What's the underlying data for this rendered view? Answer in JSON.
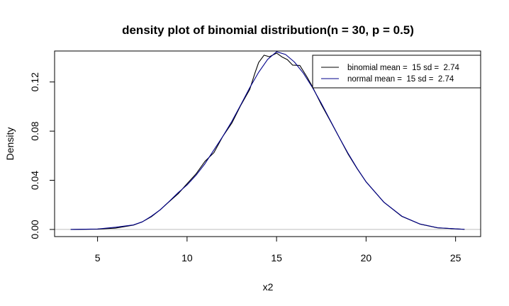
{
  "chart_data": {
    "type": "line",
    "title": "density plot of binomial distribution(n = 30, p = 0.5)",
    "xlabel": "x2",
    "ylabel": "Density",
    "xlim": [
      2.6,
      26.4
    ],
    "ylim": [
      -0.0058,
      0.1452
    ],
    "xticks": [
      5,
      10,
      15,
      20,
      25
    ],
    "yticks": [
      0.0,
      0.04,
      0.08,
      0.12
    ],
    "xtick_labels": [
      "5",
      "10",
      "15",
      "20",
      "25"
    ],
    "ytick_labels": [
      "0.00",
      "0.04",
      "0.08",
      "0.12"
    ],
    "baseline": 0,
    "legend_position": "top-right",
    "series": [
      {
        "name": "binomial mean =  15 sd =  2.74",
        "color": "#000000",
        "x": [
          3.5,
          5,
          6,
          7,
          7.5,
          8,
          8.5,
          9,
          9.5,
          10,
          10.5,
          11,
          11.5,
          12,
          12.5,
          13,
          13.5,
          13.8,
          14,
          14.3,
          14.6,
          15,
          15.3,
          15.6,
          15.9,
          16.3,
          16.7,
          17,
          17.5,
          18,
          18.5,
          19,
          19.5,
          20,
          21,
          22,
          23,
          24,
          25.5
        ],
        "y": [
          0.0,
          0.0003,
          0.0011,
          0.0035,
          0.0062,
          0.0103,
          0.016,
          0.0226,
          0.029,
          0.0372,
          0.0452,
          0.0554,
          0.0625,
          0.0758,
          0.0865,
          0.101,
          0.1139,
          0.1276,
          0.1359,
          0.1418,
          0.1405,
          0.1435,
          0.1404,
          0.1382,
          0.1337,
          0.1334,
          0.1241,
          0.1162,
          0.1016,
          0.0884,
          0.0749,
          0.0612,
          0.0495,
          0.0388,
          0.0221,
          0.0106,
          0.0044,
          0.0013,
          0.0001
        ]
      },
      {
        "name": "normal mean =  15 sd =  2.74",
        "color": "#00008B",
        "x": [
          3.5,
          5,
          6,
          7,
          7.5,
          8,
          8.5,
          9,
          9.5,
          10,
          10.5,
          11,
          11.5,
          12,
          12.5,
          13,
          13.5,
          14,
          14.5,
          15,
          15.5,
          16,
          16.5,
          17,
          17.5,
          18,
          18.5,
          19,
          19.5,
          20,
          21,
          22,
          23,
          24,
          25.5
        ],
        "y": [
          0.0,
          0.0004,
          0.0018,
          0.0037,
          0.0062,
          0.0107,
          0.016,
          0.0228,
          0.0299,
          0.0362,
          0.0441,
          0.0535,
          0.0647,
          0.0758,
          0.0879,
          0.1014,
          0.1153,
          0.1279,
          0.1383,
          0.1446,
          0.1424,
          0.1362,
          0.1271,
          0.1156,
          0.1026,
          0.0887,
          0.0749,
          0.0618,
          0.0497,
          0.0387,
          0.0221,
          0.0108,
          0.0045,
          0.0014,
          0.0001
        ]
      }
    ]
  }
}
